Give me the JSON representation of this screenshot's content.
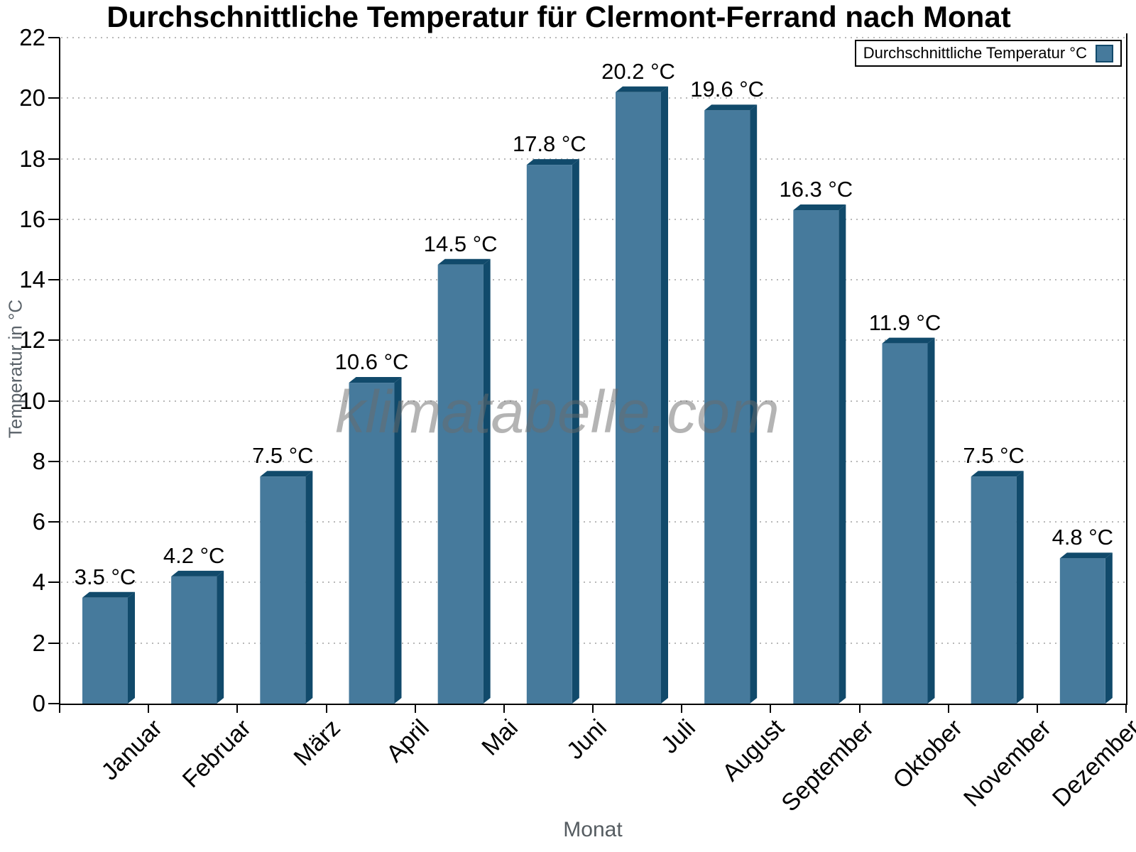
{
  "title": "Durchschnittliche Temperatur für Clermont-Ferrand nach Monat",
  "watermark": "klimatabelle.com",
  "legend": {
    "label": "Durchschnittliche Temperatur °C"
  },
  "axes": {
    "x_title": "Monat",
    "y_title": "Temperatur in °C"
  },
  "chart_data": {
    "type": "bar",
    "title": "Durchschnittliche Temperatur für Clermont-Ferrand nach Monat",
    "categories": [
      "Januar",
      "Februar",
      "März",
      "April",
      "Mai",
      "Juni",
      "Juli",
      "August",
      "September",
      "Oktober",
      "November",
      "Dezember"
    ],
    "values": [
      3.5,
      4.2,
      7.5,
      10.6,
      14.5,
      17.8,
      20.2,
      19.6,
      16.3,
      11.9,
      7.5,
      4.8
    ],
    "value_labels": [
      "3.5 °C",
      "4.2 °C",
      "7.5 °C",
      "10.6 °C",
      "14.5 °C",
      "17.8 °C",
      "20.2 °C",
      "19.6 °C",
      "16.3 °C",
      "11.9 °C",
      "7.5 °C",
      "4.8 °C"
    ],
    "xlabel": "Monat",
    "ylabel": "Temperatur in °C",
    "ylim": [
      0,
      22
    ],
    "ytick_step": 2,
    "grid": "horizontal-dotted",
    "legend_entries": [
      "Durchschnittliche Temperatur °C"
    ],
    "legend_position": "top-right",
    "bar_3d_effect": true
  },
  "colors": {
    "bar_face": "#467a9c",
    "bar_edge": "#114a6b",
    "grid": "#b9b9b9",
    "axis": "#000000",
    "axis_title": "#5a6269",
    "watermark_gray": "#a9a9a9",
    "background": "#ffffff"
  }
}
